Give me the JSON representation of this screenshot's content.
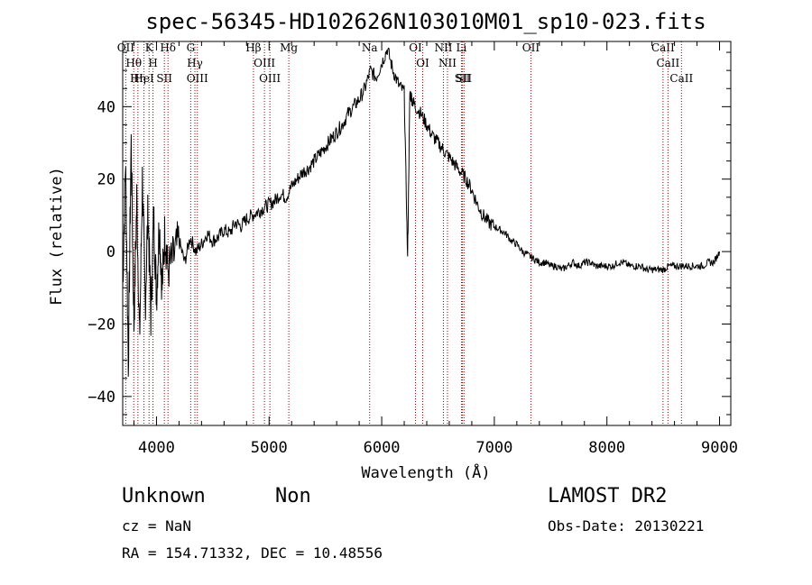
{
  "chart_data": {
    "type": "line",
    "title": "spec-56345-HD102626N103010M01_sp10-023.fits",
    "xlabel": "Wavelength (Å)",
    "ylabel": "Flux (relative)",
    "xlim": [
      3700,
      9100
    ],
    "ylim": [
      -48,
      58
    ],
    "xticks": [
      4000,
      5000,
      6000,
      7000,
      8000,
      9000
    ],
    "yticks": [
      -40,
      -20,
      0,
      20,
      40
    ],
    "grid": false,
    "series": [
      {
        "color": "#000000",
        "x": [
          3700,
          3725,
          3750,
          3775,
          3800,
          3825,
          3850,
          3875,
          3900,
          3925,
          3950,
          3975,
          4000,
          4025,
          4050,
          4075,
          4100,
          4150,
          4200,
          4250,
          4300,
          4350,
          4400,
          4450,
          4500,
          4550,
          4600,
          4650,
          4700,
          4750,
          4800,
          4850,
          4900,
          4950,
          5000,
          5050,
          5100,
          5150,
          5200,
          5250,
          5300,
          5350,
          5400,
          5450,
          5500,
          5550,
          5600,
          5650,
          5700,
          5750,
          5800,
          5850,
          5900,
          5950,
          6000,
          6050,
          6100,
          6150,
          6200,
          6230,
          6250,
          6270,
          6300,
          6350,
          6400,
          6450,
          6500,
          6550,
          6600,
          6650,
          6700,
          6750,
          6800,
          6850,
          6900,
          6950,
          7000,
          7050,
          7100,
          7150,
          7200,
          7250,
          7300,
          7350,
          7400,
          7450,
          7500,
          7550,
          7600,
          7650,
          7700,
          7750,
          7800,
          7850,
          7900,
          7950,
          8000,
          8050,
          8100,
          8150,
          8200,
          8250,
          8300,
          8350,
          8400,
          8450,
          8500,
          8550,
          8600,
          8650,
          8700,
          8750,
          8800,
          8850,
          8900,
          8950,
          9000
        ],
        "y": [
          -10,
          25,
          -30,
          30,
          -20,
          15,
          -25,
          20,
          -15,
          12,
          -18,
          10,
          -12,
          8,
          -10,
          6,
          -5,
          -2,
          3,
          -3,
          4,
          0,
          2,
          5,
          3,
          4,
          6,
          5,
          8,
          7,
          9,
          10,
          11,
          12,
          13,
          14,
          16,
          15,
          18,
          20,
          22,
          23,
          25,
          27,
          29,
          31,
          33,
          35,
          38,
          40,
          42,
          45,
          50,
          48,
          52,
          56,
          50,
          46,
          44,
          -2,
          44,
          42,
          40,
          38,
          35,
          32,
          30,
          28,
          26,
          24,
          22,
          20,
          17,
          13,
          10,
          8,
          7,
          6,
          5,
          3,
          2,
          0,
          -1,
          -2,
          -3,
          -3,
          -4,
          -4,
          -5,
          -4,
          -3,
          -4,
          -3,
          -3,
          -4,
          -4,
          -4,
          -4,
          -3,
          -3,
          -4,
          -4,
          -4,
          -5,
          -5,
          -5,
          -5,
          -4,
          -4,
          -4,
          -4,
          -4,
          -4,
          -4,
          -3,
          -3,
          0
        ]
      }
    ],
    "lines": [
      {
        "label": "OII",
        "wl": 3727
      },
      {
        "label": "Hθ",
        "wl": 3798
      },
      {
        "label": "Hη",
        "wl": 3835
      },
      {
        "label": "HeI",
        "wl": 3889
      },
      {
        "label": "K",
        "wl": 3934
      },
      {
        "label": "H",
        "wl": 3969
      },
      {
        "label": "SII",
        "wl": 4070
      },
      {
        "label": "Hδ",
        "wl": 4102
      },
      {
        "label": "G",
        "wl": 4304
      },
      {
        "label": "Hγ",
        "wl": 4341
      },
      {
        "label": "OIII",
        "wl": 4363
      },
      {
        "label": "Hβ",
        "wl": 4861
      },
      {
        "label": "OIII",
        "wl": 4959
      },
      {
        "label": "OIII",
        "wl": 5007
      },
      {
        "label": "Mg",
        "wl": 5175
      },
      {
        "label": "Na",
        "wl": 5893
      },
      {
        "label": "OI",
        "wl": 6300
      },
      {
        "label": "OI",
        "wl": 6364
      },
      {
        "label": "NII",
        "wl": 6548
      },
      {
        "label": "NII",
        "wl": 6584
      },
      {
        "label": "Li",
        "wl": 6708
      },
      {
        "label": "SII",
        "wl": 6717
      },
      {
        "label": "SII",
        "wl": 6731
      },
      {
        "label": "OII",
        "wl": 7325
      },
      {
        "label": "CaII",
        "wl": 8498
      },
      {
        "label": "CaII",
        "wl": 8542
      },
      {
        "label": "CaII",
        "wl": 8662
      }
    ]
  },
  "info": {
    "class": "Unknown",
    "subclass": "Non",
    "survey": "LAMOST DR2",
    "cz": "cz = NaN",
    "obs_date": "Obs-Date: 20130221",
    "coords": "RA = 154.71332, DEC =  10.48556"
  }
}
